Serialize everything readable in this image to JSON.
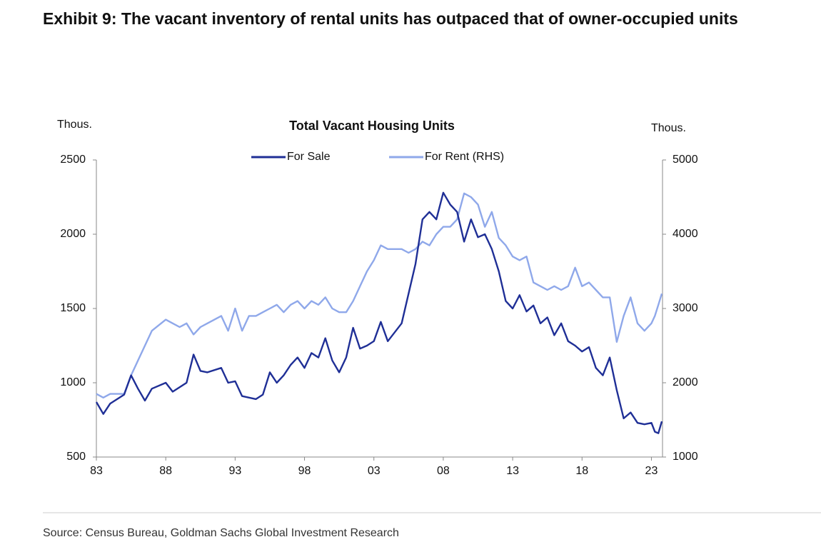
{
  "chart_data": {
    "type": "line",
    "title": "Exhibit 9: The vacant inventory of rental units has outpaced that of owner-occupied units",
    "subtitle": "Total Vacant Housing Units",
    "y_label": "Thous.",
    "y2_label": "Thous.",
    "source": "Source: Census Bureau, Goldman Sachs Global Investment Research",
    "legend": "top",
    "x": [
      1983,
      1983.5,
      1984,
      1985,
      1985.5,
      1986,
      1986.5,
      1987,
      1988,
      1988.5,
      1989,
      1989.5,
      1990,
      1990.5,
      1991,
      1992,
      1992.5,
      1993,
      1993.5,
      1994,
      1994.5,
      1995,
      1995.5,
      1996,
      1996.5,
      1997,
      1997.5,
      1998,
      1998.5,
      1999,
      1999.5,
      2000,
      2000.5,
      2001,
      2001.5,
      2002,
      2002.5,
      2003,
      2003.5,
      2004,
      2004.5,
      2005,
      2005.5,
      2006,
      2006.5,
      2007,
      2007.5,
      2008,
      2008.5,
      2009,
      2009.5,
      2010,
      2010.5,
      2011,
      2011.5,
      2012,
      2012.5,
      2013,
      2013.5,
      2014,
      2014.5,
      2015,
      2015.5,
      2016,
      2016.5,
      2017,
      2017.5,
      2018,
      2018.5,
      2019,
      2019.5,
      2020,
      2020.5,
      2021,
      2021.5,
      2022,
      2022.5,
      2023,
      2023.25,
      2023.5,
      2023.75
    ],
    "series": [
      {
        "name": "For Sale",
        "color": "#1f2f96",
        "values": [
          870,
          790,
          860,
          920,
          1050,
          960,
          880,
          960,
          1000,
          940,
          970,
          1000,
          1190,
          1080,
          1070,
          1100,
          1000,
          1010,
          910,
          900,
          890,
          920,
          1070,
          1000,
          1050,
          1120,
          1170,
          1100,
          1200,
          1170,
          1300,
          1150,
          1070,
          1170,
          1370,
          1230,
          1250,
          1280,
          1410,
          1280,
          1340,
          1400,
          1600,
          1800,
          2100,
          2150,
          2100,
          2280,
          2200,
          2150,
          1950,
          2100,
          1980,
          2000,
          1900,
          1750,
          1550,
          1500,
          1590,
          1480,
          1520,
          1400,
          1440,
          1320,
          1400,
          1280,
          1250,
          1210,
          1240,
          1100,
          1050,
          1170,
          950,
          760,
          800,
          730,
          720,
          730,
          670,
          660,
          740
        ]
      },
      {
        "name": "For Rent (RHS)",
        "color": "#8fa8ea",
        "axis": "y2",
        "values": [
          1850,
          1800,
          1850,
          1850,
          2100,
          2300,
          2500,
          2700,
          2850,
          2800,
          2750,
          2800,
          2650,
          2750,
          2800,
          2900,
          2700,
          3000,
          2700,
          2900,
          2900,
          2950,
          3000,
          3050,
          2950,
          3050,
          3100,
          3000,
          3100,
          3050,
          3150,
          3000,
          2950,
          2950,
          3100,
          3300,
          3500,
          3650,
          3850,
          3800,
          3800,
          3800,
          3750,
          3800,
          3900,
          3850,
          4000,
          4100,
          4100,
          4200,
          4550,
          4500,
          4400,
          4100,
          4300,
          3950,
          3850,
          3700,
          3650,
          3700,
          3350,
          3300,
          3250,
          3300,
          3250,
          3300,
          3550,
          3300,
          3350,
          3250,
          3150,
          3150,
          2550,
          2900,
          3150,
          2800,
          2700,
          2800,
          2900,
          3050,
          3200
        ]
      }
    ],
    "xlim": [
      1983,
      2023.8
    ],
    "xticks": [
      {
        "value": 1983,
        "label": "83"
      },
      {
        "value": 1988,
        "label": "88"
      },
      {
        "value": 1993,
        "label": "93"
      },
      {
        "value": 1998,
        "label": "98"
      },
      {
        "value": 2003,
        "label": "03"
      },
      {
        "value": 2008,
        "label": "08"
      },
      {
        "value": 2013,
        "label": "13"
      },
      {
        "value": 2018,
        "label": "18"
      },
      {
        "value": 2023,
        "label": "23"
      }
    ],
    "ylim": [
      500,
      2500
    ],
    "yticks": [
      500,
      1000,
      1500,
      2000,
      2500
    ],
    "y2lim": [
      1000,
      5000
    ],
    "y2ticks": [
      1000,
      2000,
      3000,
      4000,
      5000
    ]
  }
}
